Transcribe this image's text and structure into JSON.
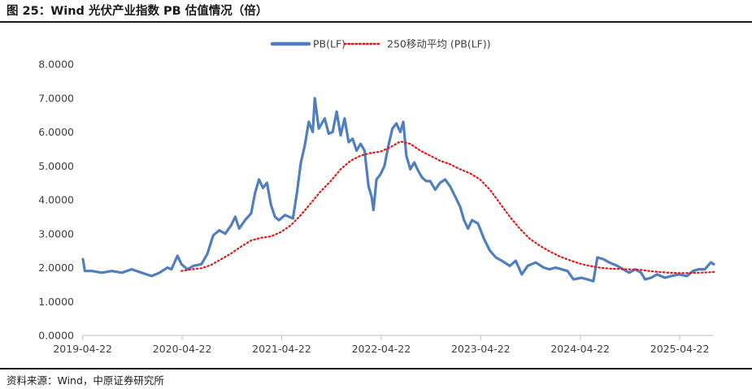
{
  "figure_title": "图 25：Wind 光伏产业指数 PB 估值情况（倍）",
  "source_note": "资料来源：Wind，中原证券研究所",
  "colors": {
    "pb": "#4f7fbf",
    "ma": "#e01818",
    "axis": "#bfbfbf",
    "text": "#404040"
  },
  "chart_data": {
    "type": "line",
    "title": "",
    "xlabel": "",
    "ylabel": "",
    "ylim": [
      0,
      8
    ],
    "y_ticks": [
      "0.0000",
      "1.0000",
      "2.0000",
      "3.0000",
      "4.0000",
      "5.0000",
      "6.0000",
      "7.0000",
      "8.0000"
    ],
    "x_tick_labels": [
      "2019-04-22",
      "2020-04-22",
      "2021-04-22",
      "2022-04-22",
      "2023-04-22",
      "2024-04-22",
      "2025-04-22"
    ],
    "x_range": [
      2019.31,
      2025.65
    ],
    "legend_position": "top-center",
    "series": [
      {
        "name": "PB(LF)",
        "style": "solid",
        "points": [
          [
            2019.31,
            2.25
          ],
          [
            2019.33,
            1.9
          ],
          [
            2019.4,
            1.9
          ],
          [
            2019.5,
            1.85
          ],
          [
            2019.6,
            1.9
          ],
          [
            2019.7,
            1.85
          ],
          [
            2019.8,
            1.95
          ],
          [
            2019.9,
            1.85
          ],
          [
            2020.0,
            1.75
          ],
          [
            2020.08,
            1.85
          ],
          [
            2020.16,
            2.0
          ],
          [
            2020.2,
            1.95
          ],
          [
            2020.26,
            2.35
          ],
          [
            2020.3,
            2.1
          ],
          [
            2020.36,
            1.95
          ],
          [
            2020.42,
            2.05
          ],
          [
            2020.5,
            2.1
          ],
          [
            2020.56,
            2.4
          ],
          [
            2020.62,
            2.95
          ],
          [
            2020.68,
            3.1
          ],
          [
            2020.74,
            3.0
          ],
          [
            2020.8,
            3.25
          ],
          [
            2020.84,
            3.5
          ],
          [
            2020.88,
            3.15
          ],
          [
            2020.94,
            3.4
          ],
          [
            2021.0,
            3.6
          ],
          [
            2021.04,
            4.2
          ],
          [
            2021.08,
            4.6
          ],
          [
            2021.12,
            4.35
          ],
          [
            2021.16,
            4.5
          ],
          [
            2021.2,
            3.85
          ],
          [
            2021.24,
            3.5
          ],
          [
            2021.28,
            3.4
          ],
          [
            2021.34,
            3.55
          ],
          [
            2021.38,
            3.5
          ],
          [
            2021.42,
            3.45
          ],
          [
            2021.46,
            4.2
          ],
          [
            2021.5,
            5.1
          ],
          [
            2021.54,
            5.6
          ],
          [
            2021.58,
            6.3
          ],
          [
            2021.62,
            6.0
          ],
          [
            2021.64,
            7.0
          ],
          [
            2021.68,
            6.1
          ],
          [
            2021.74,
            6.4
          ],
          [
            2021.78,
            5.95
          ],
          [
            2021.82,
            6.0
          ],
          [
            2021.86,
            6.6
          ],
          [
            2021.9,
            5.9
          ],
          [
            2021.94,
            6.4
          ],
          [
            2021.98,
            5.7
          ],
          [
            2022.02,
            5.8
          ],
          [
            2022.06,
            5.45
          ],
          [
            2022.1,
            5.65
          ],
          [
            2022.14,
            5.45
          ],
          [
            2022.18,
            4.4
          ],
          [
            2022.21,
            4.1
          ],
          [
            2022.23,
            3.7
          ],
          [
            2022.26,
            4.6
          ],
          [
            2022.3,
            4.75
          ],
          [
            2022.34,
            5.0
          ],
          [
            2022.38,
            5.6
          ],
          [
            2022.42,
            6.1
          ],
          [
            2022.46,
            6.25
          ],
          [
            2022.5,
            6.0
          ],
          [
            2022.53,
            6.3
          ],
          [
            2022.56,
            5.3
          ],
          [
            2022.6,
            4.9
          ],
          [
            2022.64,
            5.1
          ],
          [
            2022.68,
            4.85
          ],
          [
            2022.72,
            4.65
          ],
          [
            2022.76,
            4.55
          ],
          [
            2022.8,
            4.55
          ],
          [
            2022.85,
            4.3
          ],
          [
            2022.9,
            4.5
          ],
          [
            2022.95,
            4.6
          ],
          [
            2023.0,
            4.4
          ],
          [
            2023.05,
            4.1
          ],
          [
            2023.1,
            3.8
          ],
          [
            2023.14,
            3.4
          ],
          [
            2023.18,
            3.15
          ],
          [
            2023.22,
            3.4
          ],
          [
            2023.28,
            3.3
          ],
          [
            2023.34,
            2.85
          ],
          [
            2023.4,
            2.5
          ],
          [
            2023.46,
            2.3
          ],
          [
            2023.52,
            2.2
          ],
          [
            2023.6,
            2.05
          ],
          [
            2023.66,
            2.2
          ],
          [
            2023.72,
            1.8
          ],
          [
            2023.78,
            2.05
          ],
          [
            2023.86,
            2.15
          ],
          [
            2023.94,
            2.0
          ],
          [
            2024.0,
            1.95
          ],
          [
            2024.06,
            2.0
          ],
          [
            2024.12,
            1.95
          ],
          [
            2024.18,
            1.9
          ],
          [
            2024.24,
            1.65
          ],
          [
            2024.32,
            1.7
          ],
          [
            2024.38,
            1.65
          ],
          [
            2024.44,
            1.6
          ],
          [
            2024.48,
            2.3
          ],
          [
            2024.54,
            2.25
          ],
          [
            2024.6,
            2.15
          ],
          [
            2024.68,
            2.05
          ],
          [
            2024.74,
            1.95
          ],
          [
            2024.8,
            1.85
          ],
          [
            2024.86,
            1.95
          ],
          [
            2024.92,
            1.85
          ],
          [
            2024.96,
            1.65
          ],
          [
            2025.02,
            1.7
          ],
          [
            2025.08,
            1.8
          ],
          [
            2025.16,
            1.7
          ],
          [
            2025.22,
            1.75
          ],
          [
            2025.3,
            1.8
          ],
          [
            2025.38,
            1.75
          ],
          [
            2025.44,
            1.9
          ],
          [
            2025.5,
            1.95
          ],
          [
            2025.56,
            1.95
          ],
          [
            2025.62,
            2.15
          ],
          [
            2025.65,
            2.1
          ]
        ]
      },
      {
        "name": "250移动平均 (PB(LF))",
        "style": "dotted",
        "points": [
          [
            2020.3,
            1.9
          ],
          [
            2020.4,
            1.95
          ],
          [
            2020.5,
            1.98
          ],
          [
            2020.6,
            2.08
          ],
          [
            2020.7,
            2.25
          ],
          [
            2020.8,
            2.42
          ],
          [
            2020.9,
            2.62
          ],
          [
            2021.0,
            2.8
          ],
          [
            2021.1,
            2.88
          ],
          [
            2021.2,
            2.92
          ],
          [
            2021.3,
            3.05
          ],
          [
            2021.4,
            3.25
          ],
          [
            2021.5,
            3.55
          ],
          [
            2021.6,
            3.9
          ],
          [
            2021.7,
            4.25
          ],
          [
            2021.8,
            4.55
          ],
          [
            2021.9,
            4.9
          ],
          [
            2022.0,
            5.15
          ],
          [
            2022.1,
            5.3
          ],
          [
            2022.2,
            5.38
          ],
          [
            2022.3,
            5.42
          ],
          [
            2022.4,
            5.55
          ],
          [
            2022.5,
            5.72
          ],
          [
            2022.6,
            5.65
          ],
          [
            2022.7,
            5.45
          ],
          [
            2022.8,
            5.3
          ],
          [
            2022.9,
            5.15
          ],
          [
            2023.0,
            5.05
          ],
          [
            2023.1,
            4.9
          ],
          [
            2023.2,
            4.78
          ],
          [
            2023.3,
            4.6
          ],
          [
            2023.4,
            4.3
          ],
          [
            2023.5,
            3.9
          ],
          [
            2023.6,
            3.5
          ],
          [
            2023.7,
            3.15
          ],
          [
            2023.8,
            2.85
          ],
          [
            2023.9,
            2.65
          ],
          [
            2024.0,
            2.48
          ],
          [
            2024.1,
            2.33
          ],
          [
            2024.2,
            2.22
          ],
          [
            2024.3,
            2.12
          ],
          [
            2024.4,
            2.05
          ],
          [
            2024.5,
            2.0
          ],
          [
            2024.6,
            1.97
          ],
          [
            2024.7,
            1.96
          ],
          [
            2024.8,
            1.95
          ],
          [
            2024.9,
            1.94
          ],
          [
            2025.0,
            1.9
          ],
          [
            2025.1,
            1.87
          ],
          [
            2025.2,
            1.85
          ],
          [
            2025.3,
            1.84
          ],
          [
            2025.4,
            1.84
          ],
          [
            2025.5,
            1.85
          ],
          [
            2025.6,
            1.86
          ],
          [
            2025.65,
            1.87
          ]
        ]
      }
    ]
  }
}
